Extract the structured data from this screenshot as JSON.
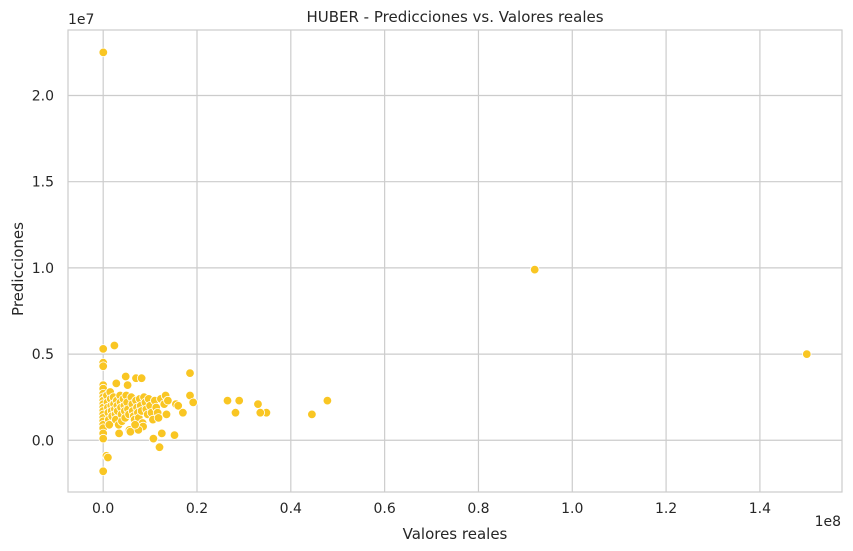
{
  "chart_data": {
    "type": "scatter",
    "title": "HUBER - Predicciones vs. Valores reales",
    "xlabel": "Valores reales",
    "ylabel": "Predicciones",
    "x_offset_label": "1e8",
    "y_offset_label": "1e7",
    "x_scale": 100000000,
    "y_scale": 10000000,
    "xlim": [
      -7500000,
      157500000
    ],
    "ylim": [
      -3000000,
      23800000
    ],
    "x_ticks": [
      0,
      20000000,
      40000000,
      60000000,
      80000000,
      100000000,
      120000000,
      140000000
    ],
    "x_tick_labels": [
      "0.0",
      "0.2",
      "0.4",
      "0.6",
      "0.8",
      "1.0",
      "1.2",
      "1.4"
    ],
    "y_ticks": [
      0,
      5000000,
      10000000,
      15000000,
      20000000
    ],
    "y_tick_labels": [
      "0.0",
      "0.5",
      "1.0",
      "1.5",
      "2.0"
    ],
    "grid": true,
    "legend": "none",
    "color": "#f9c623",
    "points": [
      [
        20000,
        22500000
      ],
      [
        92000000,
        9900000
      ],
      [
        150000000,
        5000000
      ],
      [
        0,
        5300000
      ],
      [
        2400000,
        5500000
      ],
      [
        0,
        4500000
      ],
      [
        0,
        4300000
      ],
      [
        18500000,
        3900000
      ],
      [
        4800000,
        3700000
      ],
      [
        7000000,
        3600000
      ],
      [
        8200000,
        3600000
      ],
      [
        0,
        3200000
      ],
      [
        0,
        3000000
      ],
      [
        2800000,
        3300000
      ],
      [
        5200000,
        3200000
      ],
      [
        18500000,
        2600000
      ],
      [
        19200000,
        2200000
      ],
      [
        26500000,
        2300000
      ],
      [
        29000000,
        2300000
      ],
      [
        33000000,
        2100000
      ],
      [
        34800000,
        1600000
      ],
      [
        33500000,
        1600000
      ],
      [
        28200000,
        1600000
      ],
      [
        44500000,
        1500000
      ],
      [
        47800000,
        2300000
      ],
      [
        0,
        2700000
      ],
      [
        0,
        2500000
      ],
      [
        0,
        2300000
      ],
      [
        0,
        2100000
      ],
      [
        0,
        1900000
      ],
      [
        0,
        1700000
      ],
      [
        0,
        1500000
      ],
      [
        0,
        1300000
      ],
      [
        0,
        1100000
      ],
      [
        0,
        900000
      ],
      [
        0,
        700000
      ],
      [
        0,
        400000
      ],
      [
        0,
        100000
      ],
      [
        0,
        -1800000
      ],
      [
        800000,
        2600000
      ],
      [
        900000,
        2200000
      ],
      [
        1000000,
        1900000
      ],
      [
        1100000,
        1600000
      ],
      [
        1200000,
        1200000
      ],
      [
        1500000,
        2800000
      ],
      [
        1600000,
        2400000
      ],
      [
        1700000,
        2000000
      ],
      [
        1800000,
        1700000
      ],
      [
        1900000,
        1400000
      ],
      [
        1300000,
        900000
      ],
      [
        700000,
        -900000
      ],
      [
        1000000,
        -1000000
      ],
      [
        2200000,
        2500000
      ],
      [
        2300000,
        2100000
      ],
      [
        2500000,
        1800000
      ],
      [
        2600000,
        1500000
      ],
      [
        2700000,
        1200000
      ],
      [
        2900000,
        2300000
      ],
      [
        3000000,
        2000000
      ],
      [
        3100000,
        1700000
      ],
      [
        3300000,
        900000
      ],
      [
        3400000,
        400000
      ],
      [
        3600000,
        2600000
      ],
      [
        3700000,
        2200000
      ],
      [
        3800000,
        1900000
      ],
      [
        3900000,
        1500000
      ],
      [
        4000000,
        1100000
      ],
      [
        4300000,
        2400000
      ],
      [
        4500000,
        2000000
      ],
      [
        4600000,
        1700000
      ],
      [
        4700000,
        1300000
      ],
      [
        4900000,
        2600000
      ],
      [
        5100000,
        2200000
      ],
      [
        5300000,
        1800000
      ],
      [
        5500000,
        1500000
      ],
      [
        5600000,
        600000
      ],
      [
        5800000,
        500000
      ],
      [
        6000000,
        2500000
      ],
      [
        6200000,
        2100000
      ],
      [
        6300000,
        1700000
      ],
      [
        6500000,
        1400000
      ],
      [
        6700000,
        1200000
      ],
      [
        7000000,
        2300000
      ],
      [
        7200000,
        1900000
      ],
      [
        7400000,
        1600000
      ],
      [
        7600000,
        1300000
      ],
      [
        7800000,
        2400000
      ],
      [
        8000000,
        2000000
      ],
      [
        8200000,
        1700000
      ],
      [
        8400000,
        1000000
      ],
      [
        8500000,
        800000
      ],
      [
        8700000,
        2500000
      ],
      [
        9000000,
        2200000
      ],
      [
        9200000,
        1800000
      ],
      [
        9500000,
        1500000
      ],
      [
        9700000,
        2400000
      ],
      [
        10000000,
        2000000
      ],
      [
        10300000,
        1600000
      ],
      [
        10600000,
        1200000
      ],
      [
        10700000,
        100000
      ],
      [
        11000000,
        2300000
      ],
      [
        11300000,
        1900000
      ],
      [
        11600000,
        1600000
      ],
      [
        12000000,
        -400000
      ],
      [
        12300000,
        2400000
      ],
      [
        12500000,
        400000
      ],
      [
        13000000,
        2100000
      ],
      [
        13300000,
        2600000
      ],
      [
        13500000,
        1500000
      ],
      [
        13800000,
        2300000
      ],
      [
        15200000,
        300000
      ],
      [
        15500000,
        2100000
      ],
      [
        16000000,
        2000000
      ],
      [
        17000000,
        1600000
      ],
      [
        11800000,
        1300000
      ],
      [
        7500000,
        600000
      ],
      [
        6800000,
        900000
      ]
    ]
  }
}
